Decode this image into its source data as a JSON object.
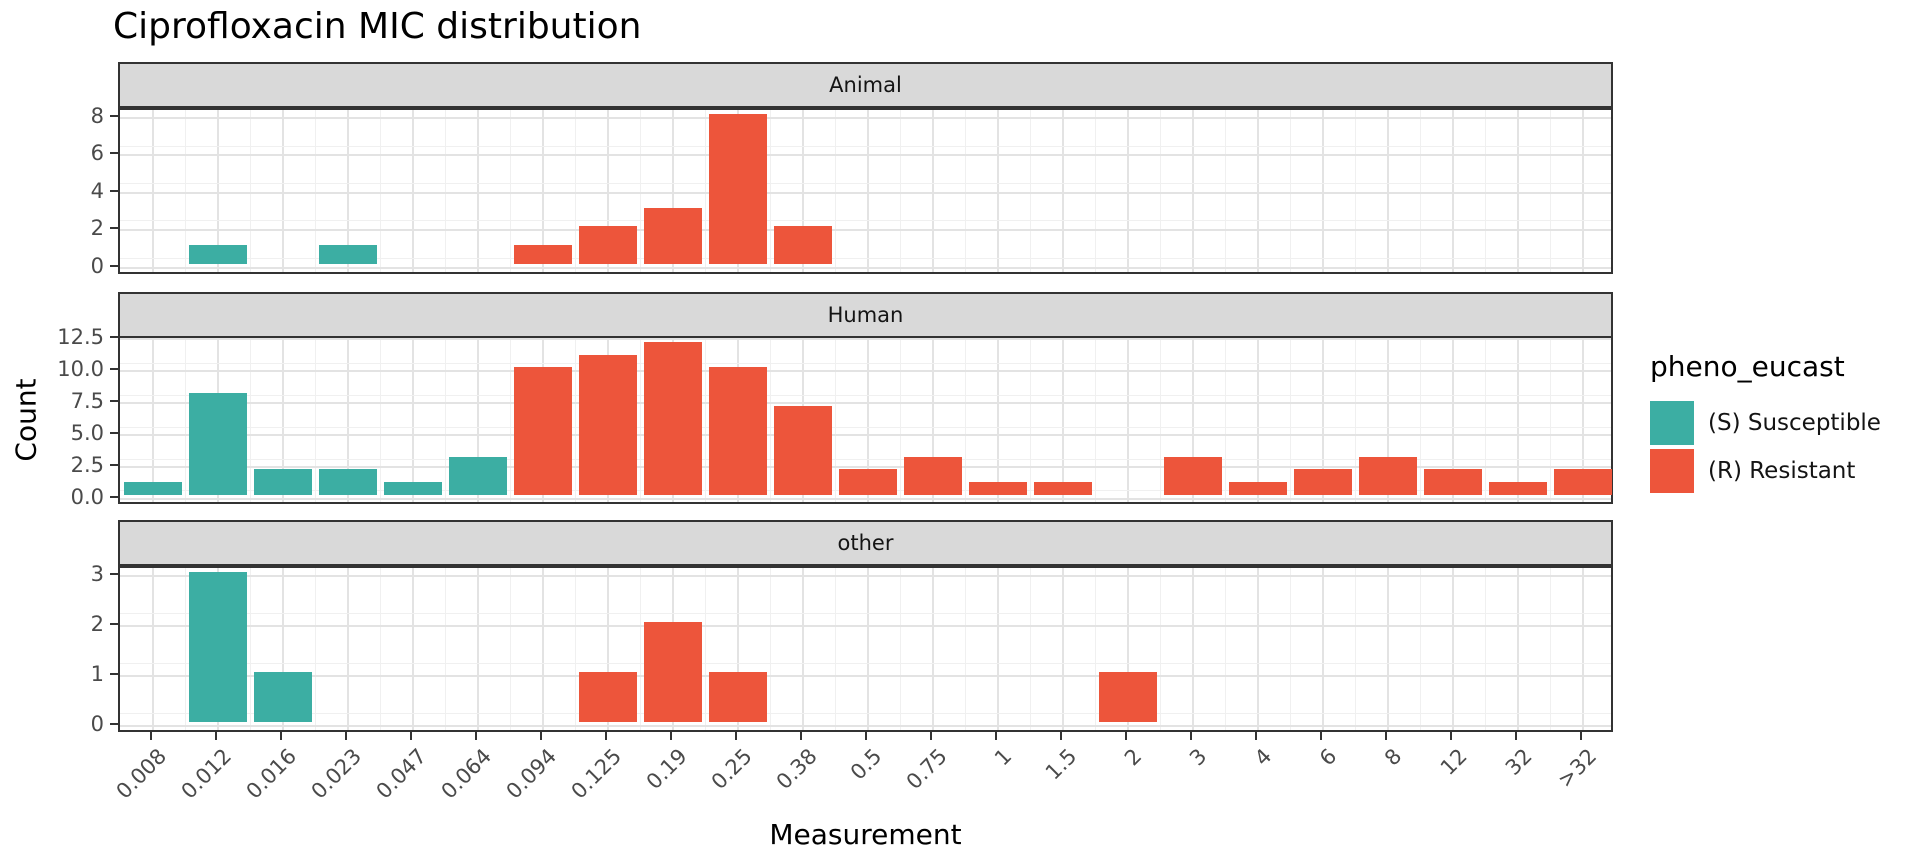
{
  "chart_data": {
    "type": "bar",
    "title": "Ciprofloxacin MIC distribution",
    "xlabel": "Measurement",
    "ylabel": "Count",
    "categories": [
      "0.008",
      "0.012",
      "0.016",
      "0.023",
      "0.047",
      "0.064",
      "0.094",
      "0.125",
      "0.19",
      "0.25",
      "0.38",
      "0.5",
      "0.75",
      "1",
      "1.5",
      "2",
      "3",
      "4",
      "6",
      "8",
      "12",
      "32",
      ">32"
    ],
    "class_colors": {
      "S": "#3CAEA3",
      "R": "#ED553B"
    },
    "grid": true,
    "legend_position": "right",
    "legend": {
      "title": "pheno_eucast",
      "items": [
        {
          "label": "(S) Susceptible",
          "class": "S",
          "color": "#3CAEA3"
        },
        {
          "label": "(R) Resistant",
          "class": "R",
          "color": "#ED553B"
        }
      ]
    },
    "facets": [
      {
        "label": "Animal",
        "y_tick_labels": [
          "0",
          "2",
          "4",
          "6",
          "8"
        ],
        "y_tick_values": [
          0,
          2,
          4,
          6,
          8
        ],
        "y_minor_step": 1,
        "ylim": [
          -0.45,
          8.43
        ],
        "counts": [
          0,
          1,
          0,
          1,
          0,
          0,
          1,
          2,
          3,
          8,
          2,
          0,
          0,
          0,
          0,
          0,
          0,
          0,
          0,
          0,
          0,
          0,
          0
        ],
        "classes": [
          null,
          "S",
          null,
          "S",
          null,
          null,
          "R",
          "R",
          "R",
          "R",
          "R",
          null,
          null,
          null,
          null,
          null,
          null,
          null,
          null,
          null,
          null,
          null,
          null
        ]
      },
      {
        "label": "Human",
        "y_tick_labels": [
          "0.0",
          "2.5",
          "5.0",
          "7.5",
          "10.0",
          "12.5"
        ],
        "y_tick_values": [
          0,
          2.5,
          5,
          7.5,
          10,
          12.5
        ],
        "y_minor_step": 1.25,
        "ylim": [
          -0.55,
          12.45
        ],
        "counts": [
          1,
          8,
          2,
          2,
          1,
          3,
          10,
          11,
          12,
          10,
          7,
          2,
          3,
          1,
          1,
          0,
          3,
          1,
          2,
          3,
          2,
          1,
          2
        ],
        "classes": [
          "S",
          "S",
          "S",
          "S",
          "S",
          "S",
          "R",
          "R",
          "R",
          "R",
          "R",
          "R",
          "R",
          "R",
          "R",
          null,
          "R",
          "R",
          "R",
          "R",
          "R",
          "R",
          "R"
        ]
      },
      {
        "label": "other",
        "y_tick_labels": [
          "0",
          "1",
          "2",
          "3"
        ],
        "y_tick_values": [
          0,
          1,
          2,
          3
        ],
        "y_minor_step": 0.5,
        "ylim": [
          -0.16,
          3.15
        ],
        "counts": [
          0,
          3,
          1,
          0,
          0,
          0,
          0,
          1,
          2,
          1,
          0,
          0,
          0,
          0,
          0,
          1,
          0,
          0,
          0,
          0,
          0,
          0,
          0
        ],
        "classes": [
          null,
          "S",
          "S",
          null,
          null,
          null,
          null,
          "R",
          "R",
          "R",
          null,
          null,
          null,
          null,
          null,
          "R",
          null,
          null,
          null,
          null,
          null,
          null,
          null
        ]
      }
    ]
  }
}
